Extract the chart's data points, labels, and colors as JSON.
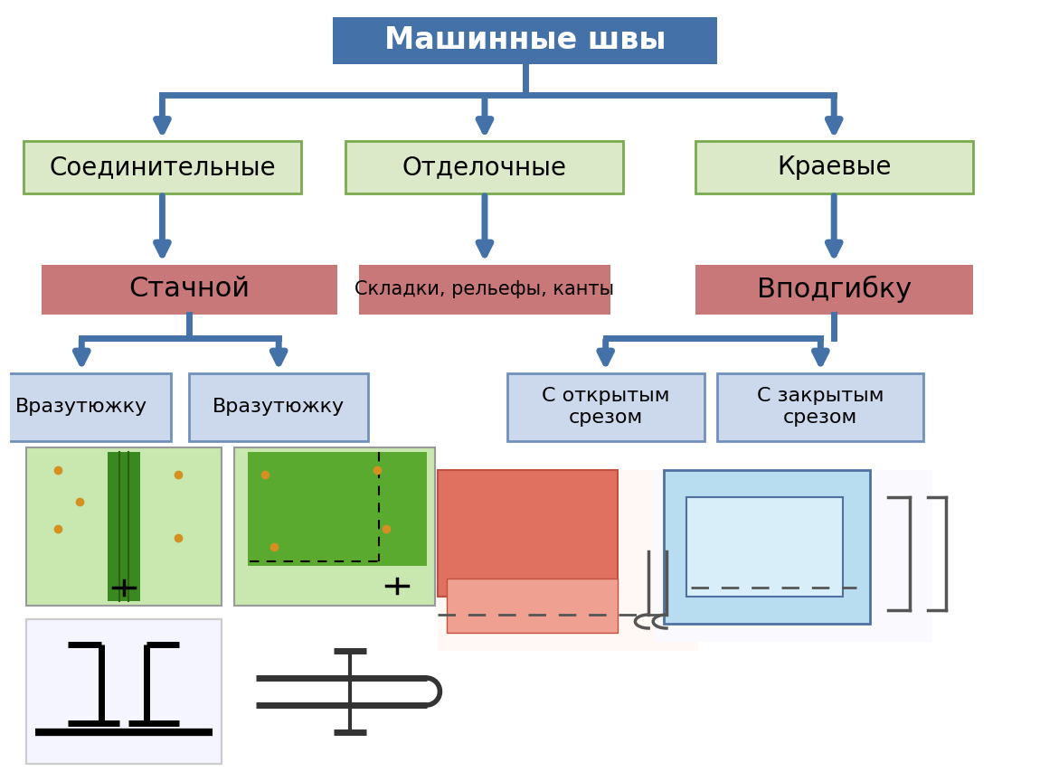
{
  "title": "Машинные швы",
  "title_bg": "#4472a8",
  "title_text_color": "#ffffff",
  "level1": [
    "Соединительные",
    "Отделочные",
    "Краевые"
  ],
  "level1_bg": "#dce9c8",
  "level1_border": "#7aaa50",
  "level1_text_color": "#000000",
  "level2_left": "Стачной",
  "level2_mid": "Складки, рельефы, канты",
  "level2_right": "Вподгибку",
  "level2_main_bg": "#c87878",
  "level2_mid_bg": "#c87878",
  "level2_text_color": "#000000",
  "level3_nodes": [
    "Вразутюжку",
    "Вразутюжку",
    "С открытым\nсрезом",
    "С закрытым\nсрезом"
  ],
  "level3_bg": "#ccd9ed",
  "level3_border": "#7090bb",
  "level3_text_color": "#000000",
  "arrow_color": "#4472a8",
  "bg_color": "#ffffff"
}
